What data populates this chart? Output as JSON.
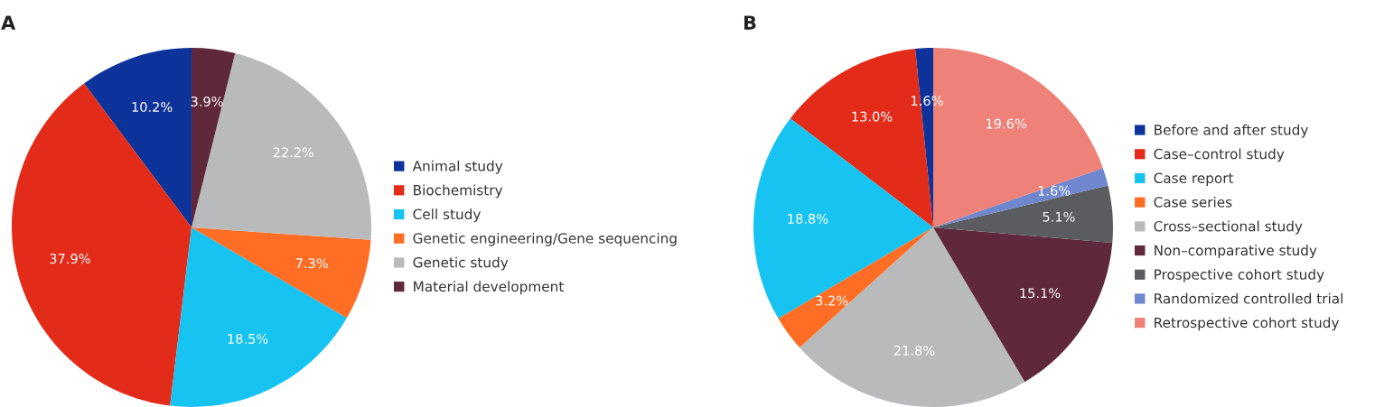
{
  "chart_data": [
    {
      "type": "pie",
      "title": "A",
      "categories": [
        "Animal study",
        "Biochemistry",
        "Cell study",
        "Genetic engineering/Gene sequencing",
        "Genetic study",
        "Material development"
      ],
      "values": [
        10.2,
        37.9,
        18.5,
        7.3,
        22.2,
        3.9
      ],
      "value_labels": [
        "10.2%",
        "37.9%",
        "18.5%",
        "7.3%",
        "22.2%",
        "3.9%"
      ],
      "colors": [
        "#0d339b",
        "#e32b1a",
        "#17c3f0",
        "#ff6e24",
        "#b9babc",
        "#5f283b"
      ],
      "legend": "right"
    },
    {
      "type": "pie",
      "title": "B",
      "categories": [
        "Before and after study",
        "Case–control study",
        "Case report",
        "Case series",
        "Cross–sectional study",
        "Non–comparative study",
        "Prospective cohort study",
        "Randomized controlled trial",
        "Retrospective cohort study"
      ],
      "values": [
        1.6,
        13.0,
        18.8,
        3.2,
        21.8,
        15.1,
        5.1,
        1.6,
        19.6
      ],
      "value_labels": [
        "1.6%",
        "13.0%",
        "18.8%",
        "3.2%",
        "21.8%",
        "15.1%",
        "5.1%",
        "1.6%",
        "19.6%"
      ],
      "colors": [
        "#0d339b",
        "#e32b1a",
        "#17c3f0",
        "#ff6e24",
        "#b9babc",
        "#5f283b",
        "#5a5c60",
        "#6e87cf",
        "#ee8278"
      ],
      "legend": "right"
    }
  ]
}
